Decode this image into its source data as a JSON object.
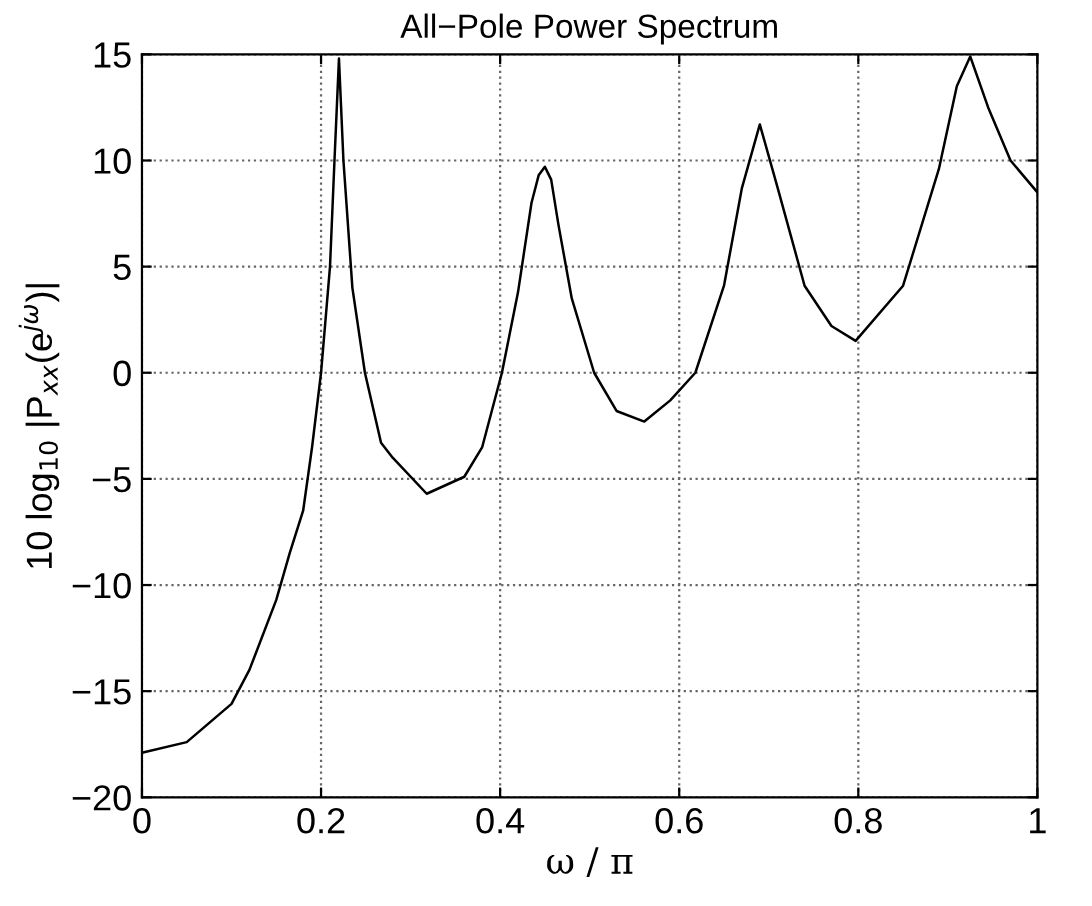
{
  "chart_data": {
    "type": "line",
    "title": "All−Pole Power Spectrum",
    "xlabel": "ω / π",
    "ylabel": "10 log$_{10}$ |P$_{xx}$(e$^{jω}$)|",
    "series": [
      {
        "color": "#000000",
        "x": [
          0,
          0.05,
          0.1,
          0.12,
          0.15,
          0.165,
          0.18,
          0.19,
          0.2,
          0.21,
          0.215,
          0.22,
          0.225,
          0.235,
          0.249,
          0.267,
          0.28,
          0.318,
          0.36,
          0.38,
          0.402,
          0.42,
          0.435,
          0.443,
          0.45,
          0.457,
          0.465,
          0.48,
          0.505,
          0.53,
          0.561,
          0.59,
          0.618,
          0.65,
          0.67,
          0.69,
          0.71,
          0.74,
          0.77,
          0.797,
          0.85,
          0.89,
          0.91,
          0.925,
          0.945,
          0.97,
          1
        ],
        "values": [
          -17.9,
          -17.4,
          -15.6,
          -14,
          -10.7,
          -8.5,
          -6.5,
          -3.5,
          0,
          5,
          10,
          14.8,
          10,
          4,
          0,
          -3.3,
          -4.0,
          -5.7,
          -4.9,
          -3.5,
          0,
          3.8,
          8,
          9.3,
          9.7,
          9.1,
          7,
          3.5,
          0,
          -1.8,
          -2.3,
          -1.3,
          0,
          4.1,
          8.7,
          11.7,
          8.7,
          4.1,
          2.2,
          1.5,
          4.1,
          9.6,
          13.5,
          14.9,
          12.5,
          10,
          8.5
        ]
      }
    ],
    "xlim": [
      0,
      1
    ],
    "ylim": [
      -20,
      15
    ],
    "xticks": [
      0,
      0.2,
      0.4,
      0.6,
      0.8,
      1
    ],
    "yticks": [
      -20,
      -15,
      -10,
      -5,
      0,
      5,
      10,
      15
    ],
    "grid": true,
    "line_style": "solid",
    "marker": "none"
  }
}
